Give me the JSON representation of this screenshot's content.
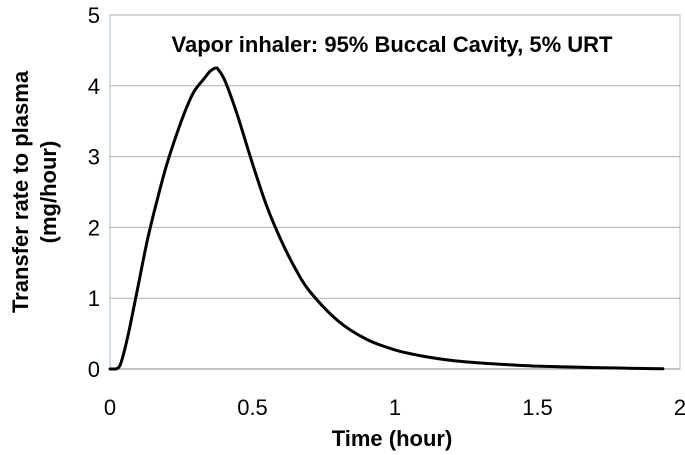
{
  "chart_data": {
    "type": "line",
    "title": "Vapor inhaler: 95% Buccal Cavity, 5% URT",
    "xlabel": "Time (hour)",
    "ylabel_lines": [
      "Transfer rate to plasma",
      "(mg/hour)"
    ],
    "xlim": [
      0,
      2
    ],
    "ylim": [
      0,
      5
    ],
    "xticks": [
      "0",
      "0.5",
      "1",
      "1.5",
      "2"
    ],
    "yticks": [
      "0",
      "1",
      "2",
      "3",
      "4",
      "5"
    ],
    "grid": "horizontal",
    "series": [
      {
        "color": "#000000",
        "x": [
          0,
          0.02,
          0.035,
          0.05,
          0.07,
          0.1,
          0.13,
          0.16,
          0.2,
          0.25,
          0.28,
          0.3,
          0.33,
          0.35,
          0.37,
          0.38,
          0.4,
          0.42,
          0.45,
          0.5,
          0.55,
          0.6,
          0.65,
          0.7,
          0.8,
          0.9,
          1.0,
          1.1,
          1.2,
          1.3,
          1.4,
          1.5,
          1.6,
          1.7,
          1.8,
          1.9,
          1.94
        ],
        "y": [
          0,
          0.0,
          0.05,
          0.25,
          0.6,
          1.2,
          1.8,
          2.3,
          2.9,
          3.5,
          3.8,
          3.95,
          4.1,
          4.2,
          4.25,
          4.23,
          4.1,
          3.9,
          3.55,
          2.9,
          2.3,
          1.82,
          1.42,
          1.1,
          0.68,
          0.42,
          0.27,
          0.18,
          0.12,
          0.085,
          0.06,
          0.04,
          0.03,
          0.02,
          0.012,
          0.005,
          0.003
        ]
      }
    ]
  }
}
